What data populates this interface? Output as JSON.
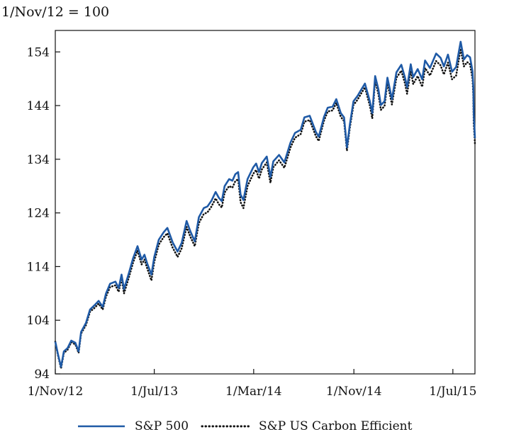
{
  "chart_data": {
    "type": "line",
    "unit_label": "1/Nov/12 = 100",
    "xlabel": "",
    "ylabel": "",
    "ylim": [
      94,
      158
    ],
    "yticks": [
      94,
      104,
      114,
      124,
      134,
      144,
      154
    ],
    "ytick_labels": [
      "94",
      "104",
      "114",
      "124",
      "134",
      "144",
      "154"
    ],
    "xlim": [
      "2012-11-01",
      "2015-08-24"
    ],
    "xticks": [
      {
        "date": "2012-11-01",
        "label": "1/Nov/12"
      },
      {
        "date": "2013-07-01",
        "label": "1/Jul/13"
      },
      {
        "date": "2014-03-01",
        "label": "1/Mar/14"
      },
      {
        "date": "2014-11-01",
        "label": "1/Nov/14"
      },
      {
        "date": "2015-07-01",
        "label": "1/Jul/15"
      }
    ],
    "grid": false,
    "legend_position": "bottom",
    "series": [
      {
        "name": "S&P 500",
        "color": "#1f5aa6",
        "style": "solid",
        "points": [
          [
            "2012-11-01",
            100
          ],
          [
            "2012-11-08",
            97.5
          ],
          [
            "2012-11-15",
            95.3
          ],
          [
            "2012-11-22",
            98.2
          ],
          [
            "2012-12-01",
            98.8
          ],
          [
            "2012-12-10",
            100.2
          ],
          [
            "2012-12-20",
            99.8
          ],
          [
            "2012-12-28",
            98.2
          ],
          [
            "2013-01-03",
            101.8
          ],
          [
            "2013-01-15",
            103.5
          ],
          [
            "2013-01-25",
            106.0
          ],
          [
            "2013-02-05",
            106.8
          ],
          [
            "2013-02-15",
            107.6
          ],
          [
            "2013-02-25",
            106.5
          ],
          [
            "2013-03-05",
            109.0
          ],
          [
            "2013-03-15",
            110.8
          ],
          [
            "2013-03-28",
            111.2
          ],
          [
            "2013-04-05",
            110.0
          ],
          [
            "2013-04-12",
            112.5
          ],
          [
            "2013-04-18",
            109.8
          ],
          [
            "2013-04-30",
            112.8
          ],
          [
            "2013-05-10",
            115.5
          ],
          [
            "2013-05-21",
            117.8
          ],
          [
            "2013-05-31",
            115.3
          ],
          [
            "2013-06-07",
            116.2
          ],
          [
            "2013-06-14",
            114.5
          ],
          [
            "2013-06-24",
            112.5
          ],
          [
            "2013-07-01",
            115.8
          ],
          [
            "2013-07-12",
            119.0
          ],
          [
            "2013-07-24",
            120.4
          ],
          [
            "2013-08-02",
            121.2
          ],
          [
            "2013-08-15",
            118.5
          ],
          [
            "2013-08-27",
            116.8
          ],
          [
            "2013-09-06",
            118.4
          ],
          [
            "2013-09-18",
            122.5
          ],
          [
            "2013-09-27",
            120.6
          ],
          [
            "2013-10-08",
            118.7
          ],
          [
            "2013-10-18",
            123.2
          ],
          [
            "2013-10-30",
            124.9
          ],
          [
            "2013-11-08",
            125.2
          ],
          [
            "2013-11-18",
            126.3
          ],
          [
            "2013-11-28",
            127.9
          ],
          [
            "2013-12-06",
            126.8
          ],
          [
            "2013-12-13",
            126.2
          ],
          [
            "2013-12-20",
            129.0
          ],
          [
            "2013-12-31",
            130.3
          ],
          [
            "2014-01-08",
            130.0
          ],
          [
            "2014-01-15",
            131.2
          ],
          [
            "2014-01-22",
            131.6
          ],
          [
            "2014-01-28",
            127.4
          ],
          [
            "2014-02-04",
            126.4
          ],
          [
            "2014-02-14",
            130.3
          ],
          [
            "2014-02-28",
            132.5
          ],
          [
            "2014-03-07",
            133.2
          ],
          [
            "2014-03-14",
            131.6
          ],
          [
            "2014-03-21",
            133.3
          ],
          [
            "2014-04-02",
            134.5
          ],
          [
            "2014-04-11",
            130.7
          ],
          [
            "2014-04-18",
            133.6
          ],
          [
            "2014-05-02",
            134.8
          ],
          [
            "2014-05-15",
            133.4
          ],
          [
            "2014-05-30",
            137.1
          ],
          [
            "2014-06-10",
            138.9
          ],
          [
            "2014-06-24",
            139.5
          ],
          [
            "2014-07-03",
            141.8
          ],
          [
            "2014-07-16",
            142.1
          ],
          [
            "2014-07-31",
            139.1
          ],
          [
            "2014-08-07",
            138.2
          ],
          [
            "2014-08-20",
            141.9
          ],
          [
            "2014-08-29",
            143.6
          ],
          [
            "2014-09-10",
            143.8
          ],
          [
            "2014-09-19",
            145.2
          ],
          [
            "2014-09-30",
            142.6
          ],
          [
            "2014-10-08",
            141.8
          ],
          [
            "2014-10-15",
            136.2
          ],
          [
            "2014-10-22",
            140.4
          ],
          [
            "2014-10-31",
            144.8
          ],
          [
            "2014-11-10",
            145.8
          ],
          [
            "2014-11-20",
            147.1
          ],
          [
            "2014-11-28",
            148.1
          ],
          [
            "2014-12-10",
            144.8
          ],
          [
            "2014-12-16",
            142.6
          ],
          [
            "2014-12-23",
            149.5
          ],
          [
            "2014-12-31",
            147.0
          ],
          [
            "2015-01-06",
            144.1
          ],
          [
            "2015-01-15",
            144.8
          ],
          [
            "2015-01-22",
            149.2
          ],
          [
            "2015-02-02",
            145.2
          ],
          [
            "2015-02-13",
            150.2
          ],
          [
            "2015-02-25",
            151.6
          ],
          [
            "2015-03-06",
            149.2
          ],
          [
            "2015-03-11",
            147.4
          ],
          [
            "2015-03-20",
            151.7
          ],
          [
            "2015-03-26",
            149.3
          ],
          [
            "2015-04-06",
            150.8
          ],
          [
            "2015-04-17",
            148.9
          ],
          [
            "2015-04-24",
            152.4
          ],
          [
            "2015-05-06",
            151.0
          ],
          [
            "2015-05-21",
            153.7
          ],
          [
            "2015-06-01",
            152.9
          ],
          [
            "2015-06-09",
            151.3
          ],
          [
            "2015-06-19",
            153.5
          ],
          [
            "2015-06-29",
            150.3
          ],
          [
            "2015-07-09",
            151.2
          ],
          [
            "2015-07-20",
            155.9
          ],
          [
            "2015-07-28",
            152.6
          ],
          [
            "2015-08-05",
            153.4
          ],
          [
            "2015-08-12",
            153.0
          ],
          [
            "2015-08-18",
            150.4
          ],
          [
            "2015-08-20",
            147.4
          ],
          [
            "2015-08-21",
            142.3
          ],
          [
            "2015-08-24",
            137.9
          ]
        ]
      },
      {
        "name": "S&P US Carbon Efficient",
        "color": "#111111",
        "style": "dotted",
        "points": [
          [
            "2012-11-01",
            100
          ],
          [
            "2012-11-08",
            97.3
          ],
          [
            "2012-11-15",
            95.0
          ],
          [
            "2012-11-22",
            97.9
          ],
          [
            "2012-12-01",
            98.5
          ],
          [
            "2012-12-10",
            99.9
          ],
          [
            "2012-12-20",
            99.5
          ],
          [
            "2012-12-28",
            97.9
          ],
          [
            "2013-01-03",
            101.5
          ],
          [
            "2013-01-15",
            103.1
          ],
          [
            "2013-01-25",
            105.6
          ],
          [
            "2013-02-05",
            106.3
          ],
          [
            "2013-02-15",
            107.1
          ],
          [
            "2013-02-25",
            106.0
          ],
          [
            "2013-03-05",
            108.4
          ],
          [
            "2013-03-15",
            110.2
          ],
          [
            "2013-03-28",
            110.5
          ],
          [
            "2013-04-05",
            109.3
          ],
          [
            "2013-04-12",
            111.8
          ],
          [
            "2013-04-18",
            109.0
          ],
          [
            "2013-04-30",
            112.0
          ],
          [
            "2013-05-10",
            114.7
          ],
          [
            "2013-05-21",
            117.0
          ],
          [
            "2013-05-31",
            114.4
          ],
          [
            "2013-06-07",
            115.3
          ],
          [
            "2013-06-14",
            113.6
          ],
          [
            "2013-06-24",
            111.4
          ],
          [
            "2013-07-01",
            114.9
          ],
          [
            "2013-07-12",
            118.1
          ],
          [
            "2013-07-24",
            119.5
          ],
          [
            "2013-08-02",
            120.2
          ],
          [
            "2013-08-15",
            117.5
          ],
          [
            "2013-08-27",
            115.8
          ],
          [
            "2013-09-06",
            117.4
          ],
          [
            "2013-09-18",
            121.4
          ],
          [
            "2013-09-27",
            119.6
          ],
          [
            "2013-10-08",
            117.8
          ],
          [
            "2013-10-18",
            122.1
          ],
          [
            "2013-10-30",
            123.8
          ],
          [
            "2013-11-08",
            124.1
          ],
          [
            "2013-11-18",
            125.2
          ],
          [
            "2013-11-28",
            126.7
          ],
          [
            "2013-12-06",
            125.6
          ],
          [
            "2013-12-13",
            125.0
          ],
          [
            "2013-12-20",
            127.8
          ],
          [
            "2013-12-31",
            129.0
          ],
          [
            "2014-01-08",
            128.7
          ],
          [
            "2014-01-15",
            129.9
          ],
          [
            "2014-01-22",
            130.3
          ],
          [
            "2014-01-28",
            126.0
          ],
          [
            "2014-02-04",
            124.9
          ],
          [
            "2014-02-14",
            129.0
          ],
          [
            "2014-02-28",
            131.3
          ],
          [
            "2014-03-07",
            132.0
          ],
          [
            "2014-03-14",
            130.4
          ],
          [
            "2014-03-21",
            132.1
          ],
          [
            "2014-04-02",
            133.4
          ],
          [
            "2014-04-11",
            129.6
          ],
          [
            "2014-04-18",
            132.5
          ],
          [
            "2014-05-02",
            133.8
          ],
          [
            "2014-05-15",
            132.4
          ],
          [
            "2014-05-30",
            136.2
          ],
          [
            "2014-06-10",
            138.0
          ],
          [
            "2014-06-24",
            138.7
          ],
          [
            "2014-07-03",
            141.0
          ],
          [
            "2014-07-16",
            141.3
          ],
          [
            "2014-07-31",
            138.3
          ],
          [
            "2014-08-07",
            137.4
          ],
          [
            "2014-08-20",
            141.2
          ],
          [
            "2014-08-29",
            142.9
          ],
          [
            "2014-09-10",
            143.1
          ],
          [
            "2014-09-19",
            144.5
          ],
          [
            "2014-09-30",
            141.9
          ],
          [
            "2014-10-08",
            141.1
          ],
          [
            "2014-10-15",
            135.6
          ],
          [
            "2014-10-22",
            139.8
          ],
          [
            "2014-10-31",
            144.1
          ],
          [
            "2014-11-10",
            145.1
          ],
          [
            "2014-11-20",
            146.4
          ],
          [
            "2014-11-28",
            147.4
          ],
          [
            "2014-12-10",
            144.0
          ],
          [
            "2014-12-16",
            141.6
          ],
          [
            "2014-12-23",
            148.7
          ],
          [
            "2014-12-31",
            146.1
          ],
          [
            "2015-01-06",
            143.2
          ],
          [
            "2015-01-15",
            143.9
          ],
          [
            "2015-01-22",
            148.3
          ],
          [
            "2015-02-02",
            144.2
          ],
          [
            "2015-02-13",
            149.2
          ],
          [
            "2015-02-25",
            150.5
          ],
          [
            "2015-03-06",
            148.1
          ],
          [
            "2015-03-11",
            146.2
          ],
          [
            "2015-03-20",
            150.5
          ],
          [
            "2015-03-26",
            148.0
          ],
          [
            "2015-04-06",
            149.5
          ],
          [
            "2015-04-17",
            147.5
          ],
          [
            "2015-04-24",
            151.0
          ],
          [
            "2015-05-06",
            149.6
          ],
          [
            "2015-05-21",
            152.3
          ],
          [
            "2015-06-01",
            151.5
          ],
          [
            "2015-06-09",
            149.8
          ],
          [
            "2015-06-19",
            152.0
          ],
          [
            "2015-06-29",
            148.9
          ],
          [
            "2015-07-09",
            149.6
          ],
          [
            "2015-07-20",
            154.6
          ],
          [
            "2015-07-28",
            151.3
          ],
          [
            "2015-08-05",
            152.1
          ],
          [
            "2015-08-12",
            151.7
          ],
          [
            "2015-08-18",
            149.0
          ],
          [
            "2015-08-20",
            145.8
          ],
          [
            "2015-08-21",
            140.6
          ],
          [
            "2015-08-24",
            136.9
          ]
        ]
      }
    ]
  }
}
